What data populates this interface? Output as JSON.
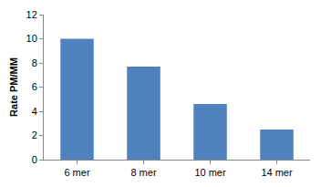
{
  "chart_data": {
    "type": "bar",
    "y_label": "Rate PM/MM",
    "categories": [
      "6 mer",
      "8 mer",
      "10 mer",
      "14 mer"
    ],
    "values": [
      10,
      7.7,
      4.6,
      2.5
    ],
    "color": "#4f81bd",
    "ylim": [
      0,
      12
    ],
    "yticks": [
      0,
      2,
      4,
      6,
      8,
      10,
      12
    ],
    "grid": false
  }
}
